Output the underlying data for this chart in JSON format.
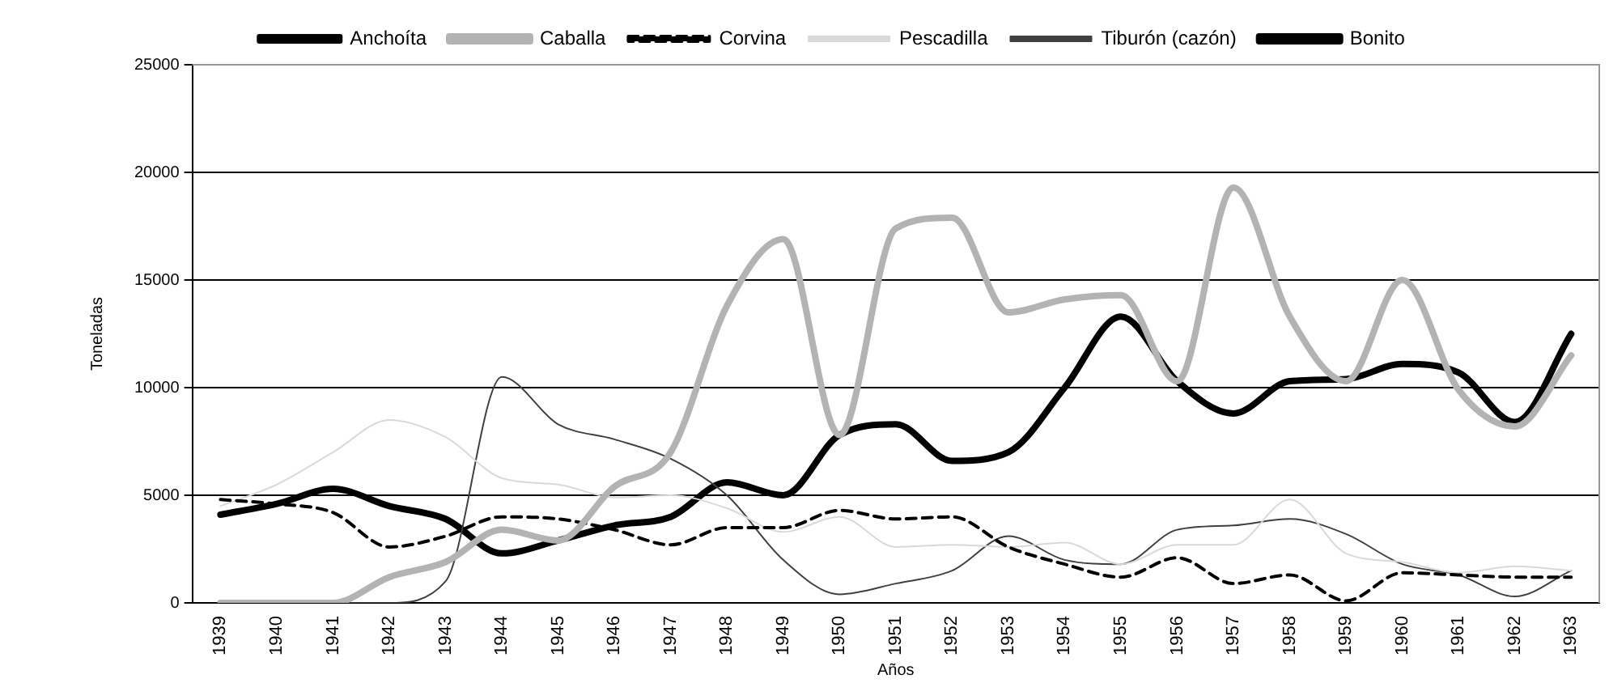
{
  "chart_data": {
    "type": "line",
    "xlabel": "Años",
    "ylabel": "Toneladas",
    "categories": [
      "1939",
      "1940",
      "1941",
      "1942",
      "1943",
      "1944",
      "1945",
      "1946",
      "1947",
      "1948",
      "1949",
      "1950",
      "1951",
      "1952",
      "1953",
      "1954",
      "1955",
      "1956",
      "1957",
      "1958",
      "1959",
      "1960",
      "1961",
      "1962",
      "1963"
    ],
    "ylim": [
      0,
      25000
    ],
    "yticks": [
      0,
      5000,
      10000,
      15000,
      20000,
      25000
    ],
    "grid": "y",
    "legend": "top",
    "marker": "none",
    "series": [
      {
        "name": "Anchoíta",
        "color": "#000000",
        "line_style": "solid",
        "values": [
          null,
          null,
          null,
          null,
          null,
          null,
          null,
          null,
          null,
          null,
          null,
          null,
          null,
          null,
          null,
          null,
          null,
          null,
          null,
          null,
          null,
          null,
          null,
          null,
          null
        ]
      },
      {
        "name": "Caballa",
        "color": "#b3b3b3",
        "line_style": "solid",
        "values": [
          0,
          0,
          0,
          1200,
          1900,
          3400,
          2900,
          5400,
          7000,
          13800,
          16900,
          7800,
          17400,
          17900,
          13500,
          14100,
          14300,
          10300,
          19300,
          13300,
          10300,
          15000,
          9900,
          8200,
          11500
        ]
      },
      {
        "name": "Corvina",
        "color": "#000000",
        "line_style": "dashed",
        "values": [
          4800,
          4600,
          4200,
          2600,
          3100,
          4000,
          3900,
          3400,
          2700,
          3500,
          3500,
          4300,
          3900,
          4000,
          2600,
          1800,
          1200,
          2100,
          900,
          1300,
          100,
          1400,
          1300,
          1200,
          1200
        ]
      },
      {
        "name": "Pescadilla",
        "color": "#d9d9d9",
        "line_style": "solid",
        "values": [
          4500,
          5500,
          7000,
          8500,
          7700,
          5800,
          5500,
          4900,
          5000,
          4400,
          3300,
          4000,
          2600,
          2700,
          2600,
          2800,
          1800,
          2700,
          2700,
          4800,
          2300,
          1900,
          1400,
          1700,
          1500
        ]
      },
      {
        "name": "Tiburón (cazón)",
        "color": "#404040",
        "line_style": "solid",
        "values": [
          0,
          0,
          0,
          0,
          1000,
          10500,
          8300,
          7600,
          6700,
          5000,
          2000,
          400,
          900,
          1500,
          3100,
          2000,
          1800,
          3400,
          3600,
          3900,
          3200,
          1800,
          1300,
          300,
          1500
        ]
      },
      {
        "name": "Bonito",
        "color": "#000000",
        "line_style": "solid",
        "values": [
          4100,
          4600,
          5300,
          4500,
          3900,
          2300,
          2900,
          3600,
          4000,
          5600,
          5000,
          7800,
          8300,
          6600,
          7000,
          10000,
          13300,
          10300,
          8800,
          10300,
          10400,
          11100,
          10700,
          8400,
          12500
        ]
      }
    ]
  }
}
